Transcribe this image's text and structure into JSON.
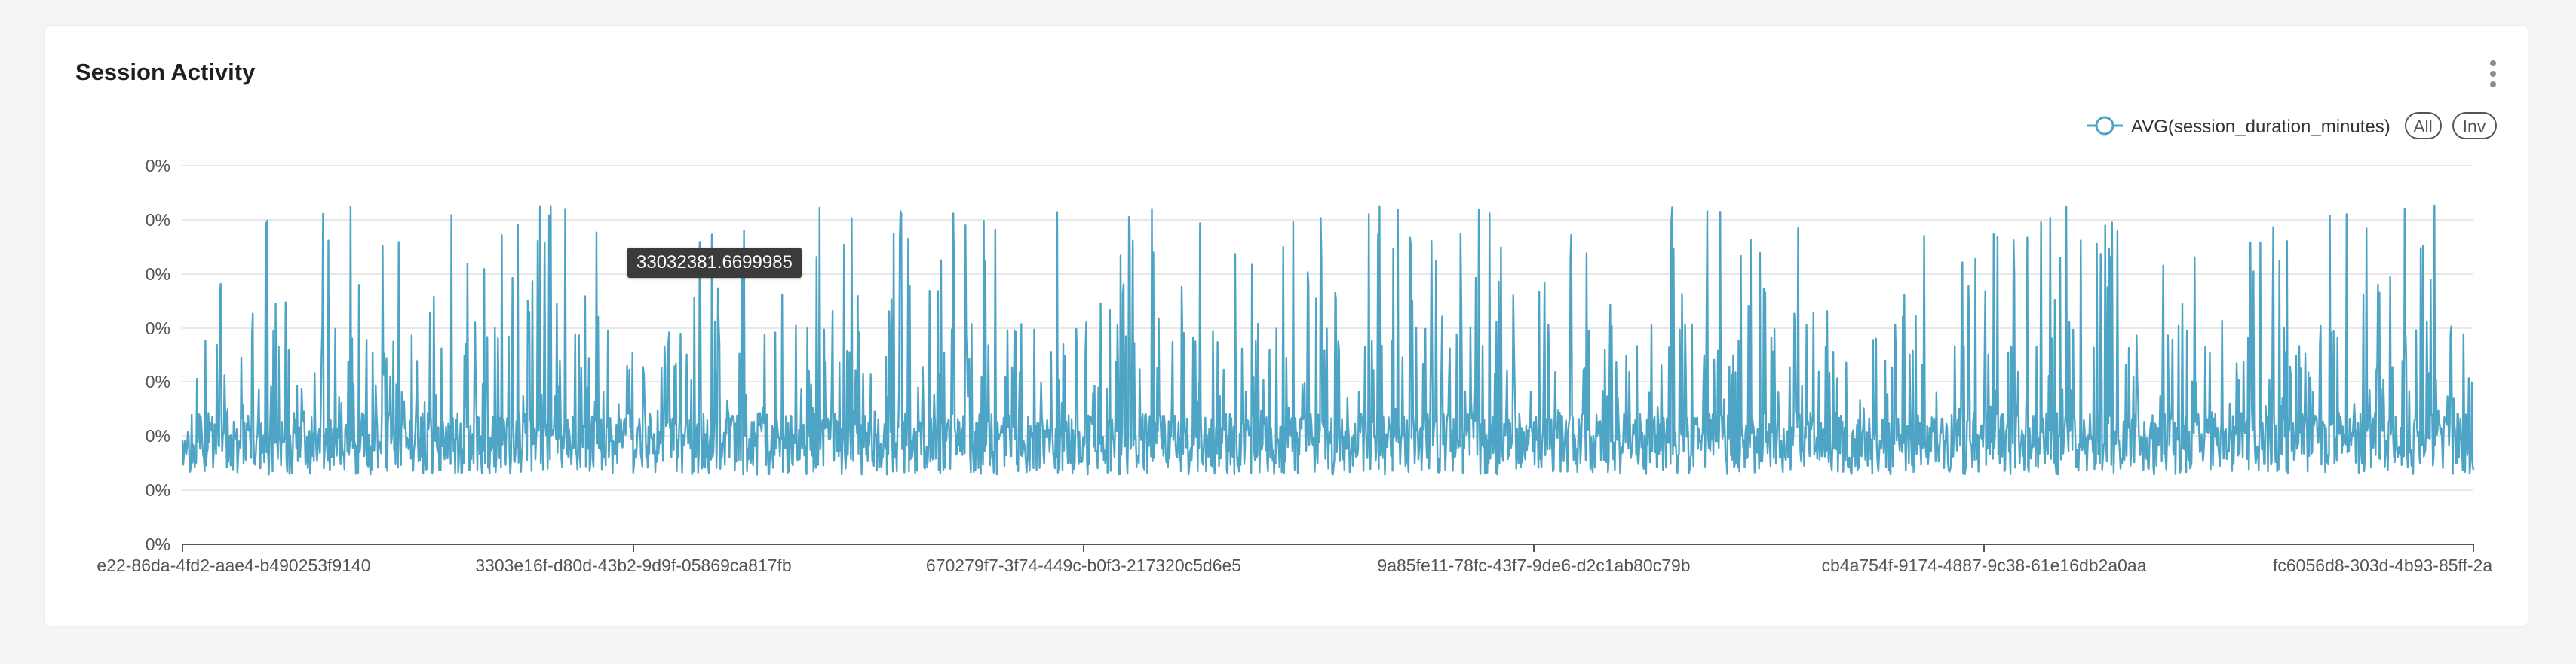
{
  "panel": {
    "title": "Session Activity"
  },
  "tooltip": {
    "value": "33032381.6699985"
  },
  "legend": {
    "series_label": "AVG(session_duration_minutes)",
    "all_label": "All",
    "inv_label": "Inv",
    "placement": "top-right"
  },
  "colors": {
    "series": "#4ea4c4",
    "grid": "#e8e8e8",
    "axis": "#555555",
    "text": "#555555"
  },
  "chart_data": {
    "type": "line",
    "title": "Session Activity",
    "xlabel": "",
    "ylabel": "",
    "grid": true,
    "y_tick_labels": [
      "0%",
      "0%",
      "0%",
      "0%",
      "0%",
      "0%",
      "0%",
      "0%"
    ],
    "x_tick_labels": [
      "e22-86da-4fd2-aae4-b490253f9140",
      "3303e16f-d80d-43b2-9d9f-05869ca817fb",
      "670279f7-3f74-449c-b0f3-217320c5d6e5",
      "9a85fe11-78fc-43f7-9de6-d2c1ab80c79b",
      "cb4a754f-9174-4887-9c38-61e16db2a0aa",
      "fc6056d8-303d-4b93-85ff-2a"
    ],
    "series": [
      {
        "name": "AVG(session_duration_minutes)",
        "point_count": 3000,
        "baseline_value": 0.02,
        "typical_peak_value": 0.45,
        "max_value": 0.675
      }
    ]
  }
}
